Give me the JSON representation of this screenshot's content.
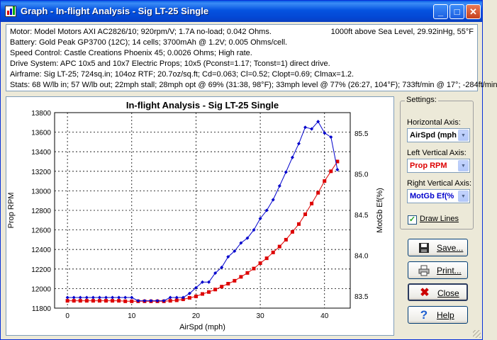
{
  "window": {
    "title": "Graph - In-flight Analysis - Sig LT-25 Single"
  },
  "info": {
    "lines": [
      "Motor: Model Motors AXI AC2826/10; 920rpm/V; 1.7A no-load; 0.042 Ohms.",
      "Battery: Gold Peak GP3700 (12C); 14 cells; 3700mAh @ 1.2V; 0.005 Ohms/cell.",
      "Speed Control: Castle Creations Phoenix 45; 0.0026 Ohms; High rate.",
      "Drive System: APC 10x5 and 10x7 Electric Props; 10x5 (Pconst=1.17; Tconst=1) direct drive.",
      "Airframe: Sig LT-25; 724sq.in; 104oz RTF; 20.7oz/sq.ft; Cd=0.063; Cl=0.52; Clopt=0.69; Clmax=1.2.",
      "Stats: 68 W/lb in; 57 W/lb out; 22mph stall; 28mph opt @ 69% (31:38, 98°F); 33mph level @ 77% (26:27, 104°F); 733ft/min @ 17°; -284ft/min"
    ],
    "conditions": "1000ft above Sea Level, 29.92inHg, 55°F"
  },
  "settings": {
    "group_label": "Settings:",
    "h_axis_label": "Horizontal Axis:",
    "h_axis_value": "AirSpd (mph",
    "left_axis_label": "Left Vertical Axis:",
    "left_axis_value": "Prop RPM",
    "right_axis_label": "Right Vertical Axis:",
    "right_axis_value": "MotGb Ef(%",
    "draw_lines_label": "Draw Lines",
    "draw_lines_checked": true
  },
  "buttons": {
    "save": "Save...",
    "print": "Print...",
    "close": "Close",
    "help": "Help"
  },
  "colors": {
    "left_series": "#dd0000",
    "right_series": "#0000cc",
    "title_bar": "#0553e0"
  },
  "chart_data": {
    "type": "line",
    "title": "In-flight Analysis - Sig LT-25 Single",
    "xlabel": "AirSpd (mph)",
    "ylabel": "Prop RPM",
    "y2label": "MotGb Ef(%)",
    "xlim": [
      -2,
      44
    ],
    "ylim": [
      11800,
      13800
    ],
    "y2lim": [
      83.35,
      85.75
    ],
    "x_ticks": [
      0,
      10,
      20,
      30,
      40
    ],
    "y_ticks": [
      11800,
      12000,
      12200,
      12400,
      12600,
      12800,
      13000,
      13200,
      13400,
      13600,
      13800
    ],
    "y2_ticks": [
      83.5,
      84.0,
      84.5,
      85.0,
      85.5
    ],
    "grid": true,
    "series": [
      {
        "axis": "left",
        "color": "#dd0000",
        "marker": "square",
        "x": [
          0,
          1,
          2,
          3,
          4,
          5,
          6,
          7,
          8,
          9,
          10,
          11,
          12,
          13,
          14,
          15,
          16,
          17,
          18,
          19,
          20,
          21,
          22,
          23,
          24,
          25,
          26,
          27,
          28,
          29,
          30,
          31,
          32,
          33,
          34,
          35,
          36,
          37,
          38,
          39,
          40,
          41,
          42
        ],
        "values": [
          11875,
          11875,
          11875,
          11875,
          11875,
          11875,
          11875,
          11875,
          11875,
          11870,
          11870,
          11870,
          11870,
          11870,
          11870,
          11870,
          11875,
          11880,
          11890,
          11905,
          11920,
          11945,
          11965,
          11990,
          12020,
          12050,
          12080,
          12120,
          12160,
          12205,
          12260,
          12310,
          12370,
          12430,
          12500,
          12580,
          12660,
          12760,
          12870,
          12980,
          13100,
          13200,
          13300
        ]
      },
      {
        "axis": "right",
        "color": "#0000cc",
        "marker": "diamond",
        "x": [
          0,
          1,
          2,
          3,
          4,
          5,
          6,
          7,
          8,
          9,
          10,
          11,
          12,
          13,
          14,
          15,
          16,
          17,
          18,
          19,
          20,
          21,
          22,
          23,
          24,
          25,
          26,
          27,
          28,
          29,
          30,
          31,
          32,
          33,
          34,
          35,
          36,
          37,
          38,
          39,
          40,
          41,
          42
        ],
        "values": [
          83.48,
          83.48,
          83.48,
          83.48,
          83.48,
          83.48,
          83.48,
          83.48,
          83.48,
          83.48,
          83.48,
          83.44,
          83.44,
          83.44,
          83.44,
          83.44,
          83.48,
          83.48,
          83.48,
          83.53,
          83.6,
          83.67,
          83.67,
          83.78,
          83.85,
          83.98,
          84.05,
          84.15,
          84.21,
          84.31,
          84.45,
          84.55,
          84.68,
          84.85,
          85.02,
          85.2,
          85.37,
          85.57,
          85.55,
          85.64,
          85.5,
          85.45,
          85.05
        ]
      }
    ]
  }
}
